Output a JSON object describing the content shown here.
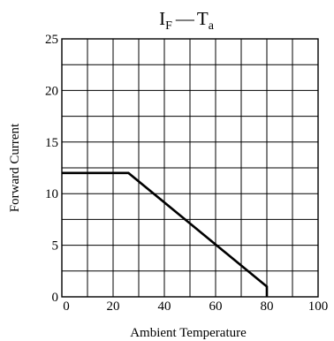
{
  "chart_data": {
    "type": "line",
    "title": {
      "main": "I",
      "main_sub": "F",
      "dash": "—",
      "right": "T",
      "right_sub": "a"
    },
    "xlabel": "Ambient Temperature",
    "ylabel": "Forward Current",
    "xlim": [
      0,
      100
    ],
    "ylim": [
      0,
      25
    ],
    "x_ticks": [
      0,
      20,
      40,
      60,
      80,
      100
    ],
    "x_tick_labels": [
      "0",
      "20",
      "40",
      "60",
      "80",
      "100"
    ],
    "y_ticks": [
      0,
      5,
      10,
      15,
      20,
      25
    ],
    "y_tick_labels": [
      "0",
      "5",
      "10",
      "15",
      "20",
      "25"
    ],
    "x_grid_step": 10,
    "y_grid_step": 2.5,
    "grid": true,
    "series": [
      {
        "x": [
          0,
          26,
          80,
          80
        ],
        "y": [
          12,
          12,
          1,
          0
        ]
      }
    ]
  }
}
